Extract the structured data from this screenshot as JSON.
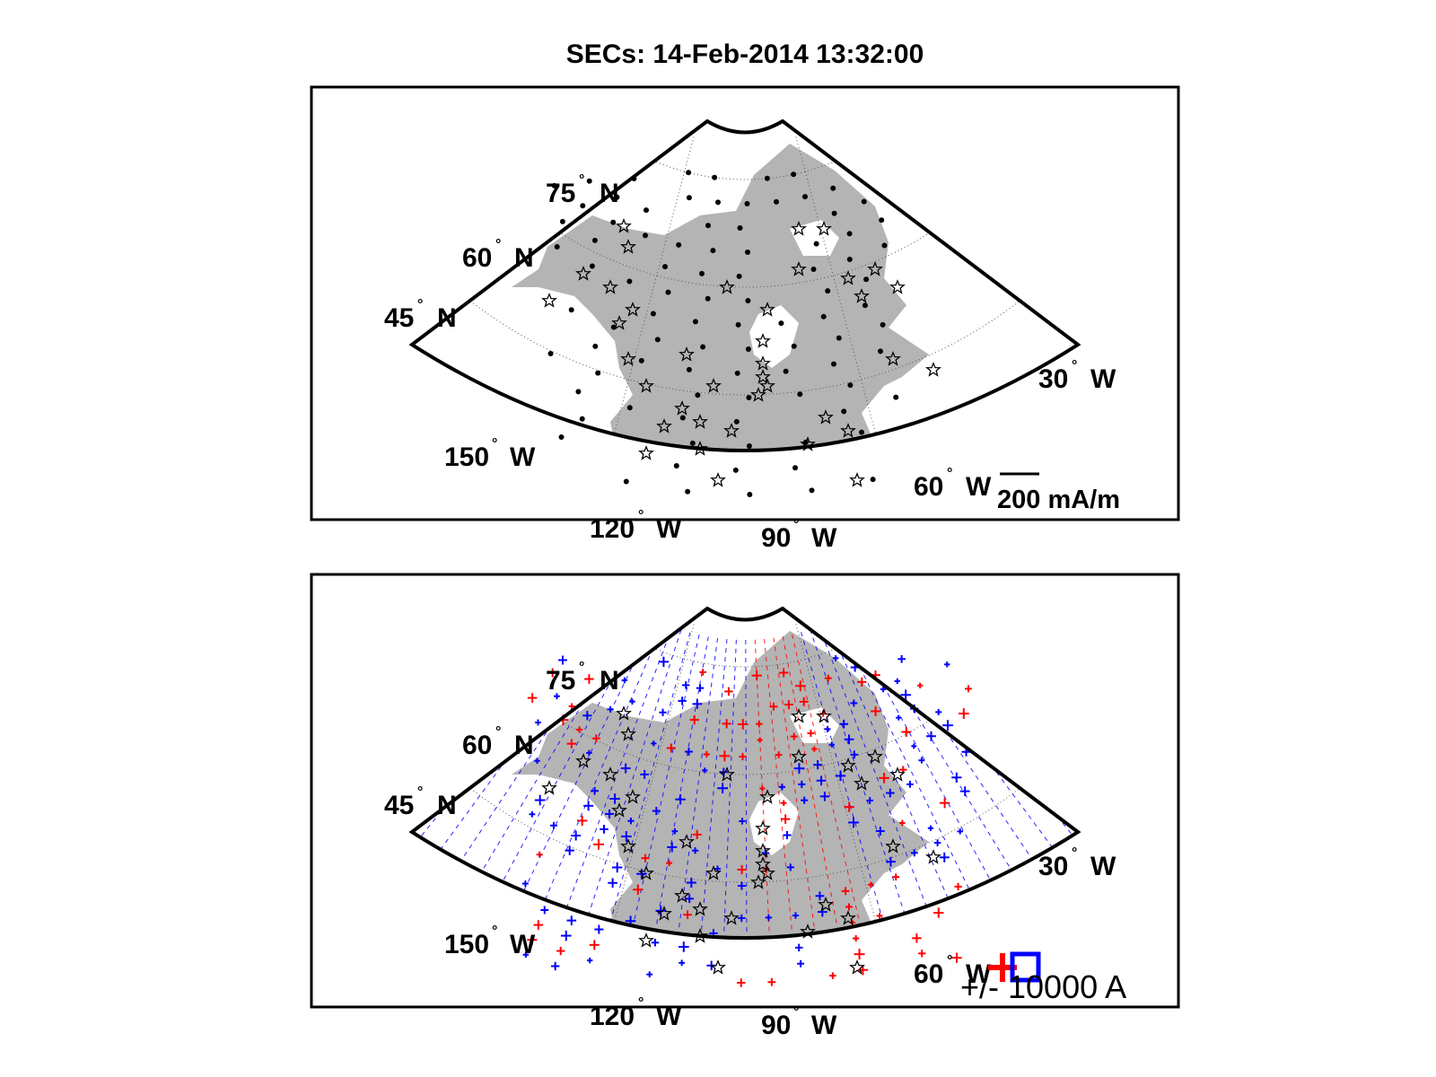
{
  "title": "SECs: 14-Feb-2014 13:32:00",
  "map_top": {
    "lat_labels": [
      {
        "lat": "75",
        "hemi": "N"
      },
      {
        "lat": "60",
        "hemi": "N"
      },
      {
        "lat": "45",
        "hemi": "N"
      }
    ],
    "lon_labels": [
      {
        "lon": "150",
        "hemi": "W"
      },
      {
        "lon": "120",
        "hemi": "W"
      },
      {
        "lon": "90",
        "hemi": "W"
      },
      {
        "lon": "60",
        "hemi": "W"
      },
      {
        "lon": "30",
        "hemi": "W"
      }
    ],
    "scale_label": "200 mA/m",
    "land_color": "#b4b4b4",
    "dot_color": "#000000",
    "station_marker": "star-icon"
  },
  "map_bottom": {
    "lat_labels": [
      {
        "lat": "75",
        "hemi": "N"
      },
      {
        "lat": "60",
        "hemi": "N"
      },
      {
        "lat": "45",
        "hemi": "N"
      }
    ],
    "lon_labels": [
      {
        "lon": "150",
        "hemi": "W"
      },
      {
        "lon": "120",
        "hemi": "W"
      },
      {
        "lon": "90",
        "hemi": "W"
      },
      {
        "lon": "60",
        "hemi": "W"
      },
      {
        "lon": "30",
        "hemi": "W"
      }
    ],
    "legend_label": "+/- 10000 A",
    "positive_color": "#ff0000",
    "negative_color": "#0000ff",
    "positive_marker": "plus-icon",
    "negative_marker": "square-icon"
  },
  "degree_symbol": "°"
}
